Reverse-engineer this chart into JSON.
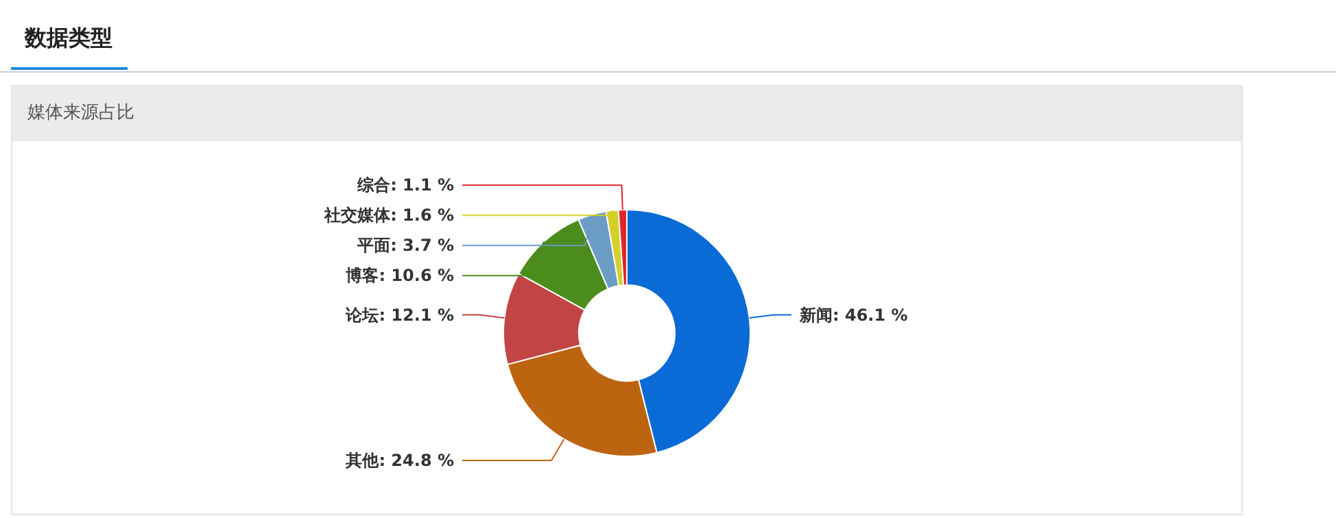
{
  "chart_data": {
    "type": "donut",
    "title": "数据类型",
    "subtitle": "媒体来源占比",
    "categories": [
      "新闻",
      "其他",
      "论坛",
      "博客",
      "平面",
      "社交媒体",
      "综合"
    ],
    "values": [
      46.1,
      24.8,
      12.1,
      10.6,
      3.7,
      1.6,
      1.1
    ],
    "value_labels": [
      "46.1 %",
      "24.8 %",
      "12.1 %",
      "10.6 %",
      "3.7 %",
      "1.6 %",
      "1.1 %"
    ],
    "colors": [
      "#0a6ad6",
      "#bd6410",
      "#c24444",
      "#4b8c1c",
      "#6a9cc4",
      "#d6cf28",
      "#e0262a"
    ]
  }
}
